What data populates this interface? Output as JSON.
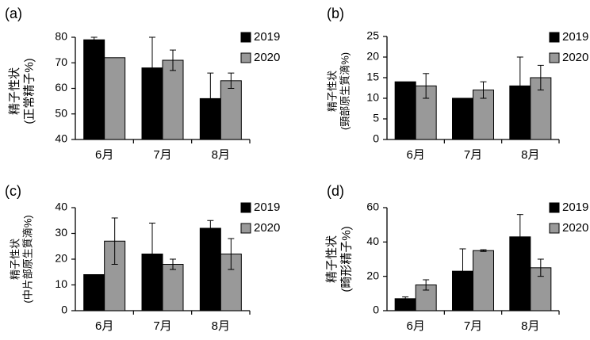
{
  "figure": {
    "series_names": [
      "2019",
      "2020"
    ],
    "series_colors": [
      "#000000",
      "#999999"
    ],
    "x_categories": [
      "6月",
      "7月",
      "8月"
    ]
  },
  "chart_data": [
    {
      "panel": "(a)",
      "type": "bar",
      "ylabel_lines": [
        "精子性状",
        "(正常精子%)"
      ],
      "ylim": [
        40,
        85
      ],
      "yticks": [
        40,
        50,
        60,
        70,
        80
      ],
      "categories": [
        "6月",
        "7月",
        "8月"
      ],
      "series": [
        {
          "name": "2019",
          "values": [
            79,
            68,
            56
          ],
          "error_plus": [
            1,
            12,
            10
          ],
          "error_minus": [
            1,
            0,
            0
          ]
        },
        {
          "name": "2020",
          "values": [
            72,
            71,
            63
          ],
          "error_plus": [
            0,
            4,
            3
          ],
          "error_minus": [
            0,
            4,
            3
          ]
        }
      ],
      "legend": "top-right"
    },
    {
      "panel": "(b)",
      "type": "bar",
      "ylabel_lines": [
        "精子性状",
        "(頸部原生質滴%)"
      ],
      "ylim": [
        0,
        25
      ],
      "yticks": [
        0,
        5,
        10,
        15,
        20,
        25
      ],
      "categories": [
        "6月",
        "7月",
        "8月"
      ],
      "series": [
        {
          "name": "2019",
          "values": [
            14,
            10,
            13
          ],
          "error_plus": [
            0,
            0,
            7
          ],
          "error_minus": [
            0,
            0,
            0
          ]
        },
        {
          "name": "2020",
          "values": [
            13,
            12,
            15
          ],
          "error_plus": [
            3,
            2,
            3
          ],
          "error_minus": [
            3,
            2,
            3
          ]
        }
      ],
      "legend": "top-right"
    },
    {
      "panel": "(c)",
      "type": "bar",
      "ylabel_lines": [
        "精子性状",
        "(中片部原生質滴%)"
      ],
      "ylim": [
        0,
        40
      ],
      "yticks": [
        0,
        10,
        20,
        30,
        40
      ],
      "categories": [
        "6月",
        "7月",
        "8月"
      ],
      "series": [
        {
          "name": "2019",
          "values": [
            14,
            22,
            32
          ],
          "error_plus": [
            0,
            12,
            3
          ],
          "error_minus": [
            0,
            0,
            3
          ]
        },
        {
          "name": "2020",
          "values": [
            27,
            18,
            22
          ],
          "error_plus": [
            9,
            2,
            6
          ],
          "error_minus": [
            9,
            2,
            6
          ]
        }
      ],
      "legend": "top-right"
    },
    {
      "panel": "(d)",
      "type": "bar",
      "ylabel_lines": [
        "精子性状",
        "(畸形精子%)"
      ],
      "ylim": [
        0,
        60
      ],
      "yticks": [
        0,
        20,
        40,
        60
      ],
      "categories": [
        "6月",
        "7月",
        "8月"
      ],
      "series": [
        {
          "name": "2019",
          "values": [
            7,
            23,
            43
          ],
          "error_plus": [
            1,
            13,
            13
          ],
          "error_minus": [
            0,
            0,
            0
          ]
        },
        {
          "name": "2020",
          "values": [
            15,
            35,
            25
          ],
          "error_plus": [
            3,
            0.5,
            5
          ],
          "error_minus": [
            3,
            0.5,
            5
          ]
        }
      ],
      "legend": "top-right"
    }
  ]
}
